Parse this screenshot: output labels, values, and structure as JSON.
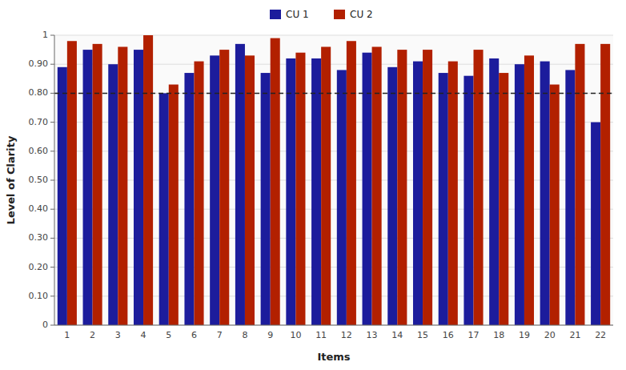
{
  "chart_data": {
    "type": "bar",
    "xlabel": "Items",
    "ylabel": "Level of Clarity",
    "categories": [
      "1",
      "2",
      "3",
      "4",
      "5",
      "6",
      "7",
      "8",
      "9",
      "10",
      "11",
      "12",
      "13",
      "14",
      "15",
      "16",
      "17",
      "18",
      "19",
      "20",
      "21",
      "22"
    ],
    "series": [
      {
        "name": "CU 1",
        "color": "#1c1c9c",
        "values": [
          0.89,
          0.95,
          0.9,
          0.95,
          0.8,
          0.87,
          0.93,
          0.97,
          0.87,
          0.92,
          0.92,
          0.88,
          0.94,
          0.89,
          0.91,
          0.87,
          0.86,
          0.92,
          0.9,
          0.91,
          0.88,
          0.7
        ]
      },
      {
        "name": "CU 2",
        "color": "#b22000",
        "values": [
          0.98,
          0.97,
          0.96,
          1.0,
          0.83,
          0.91,
          0.95,
          0.93,
          0.99,
          0.94,
          0.96,
          0.98,
          0.96,
          0.95,
          0.95,
          0.91,
          0.95,
          0.87,
          0.93,
          0.83,
          0.97,
          0.97
        ]
      }
    ],
    "reference_line": {
      "value": 0.8,
      "color": "#222222",
      "line_style": "dashed"
    },
    "ylim": [
      0,
      1.0
    ],
    "yticks": [
      0,
      {
        "value": 0.1,
        "label": "0.10"
      },
      {
        "value": 0.2,
        "label": "0.20"
      },
      {
        "value": 0.3,
        "label": "0.30"
      },
      {
        "value": 0.4,
        "label": "0.40"
      },
      {
        "value": 0.5,
        "label": "0.50"
      },
      {
        "value": 0.6,
        "label": "0.60"
      },
      {
        "value": 0.7,
        "label": "0.70"
      },
      {
        "value": 0.8,
        "label": "0.80"
      },
      {
        "value": 0.9,
        "label": "0.90"
      },
      1
    ],
    "grid": true,
    "legend": "top"
  }
}
